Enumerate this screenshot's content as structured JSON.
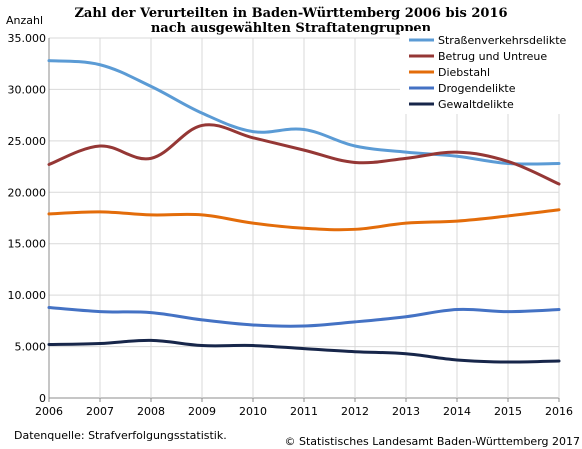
{
  "chart_data": {
    "type": "line",
    "title": "Zahl der Verurteilten in Baden-Württemberg 2006 bis 2016",
    "subtitle": "nach ausgewählten Straftatengruppen",
    "xlabel": "",
    "ylabel": "Anzahl",
    "x": [
      2006,
      2007,
      2008,
      2009,
      2010,
      2011,
      2012,
      2013,
      2014,
      2015,
      2016
    ],
    "ylim": [
      0,
      35000
    ],
    "yticks": [
      0,
      5000,
      10000,
      15000,
      20000,
      25000,
      30000,
      35000
    ],
    "ytick_labels": [
      "0",
      "5.000",
      "10.000",
      "15.000",
      "20.000",
      "25.000",
      "30.000",
      "35.000"
    ],
    "grid": true,
    "legend_position": "top-right",
    "series": [
      {
        "name": "Straßenverkehrsdelikte",
        "color": "#5b9bd5",
        "values": [
          32800,
          32400,
          30300,
          27700,
          25900,
          26100,
          24500,
          23900,
          23500,
          22800,
          22800
        ]
      },
      {
        "name": "Betrug und Untreue",
        "color": "#953735",
        "values": [
          22700,
          24500,
          23300,
          26500,
          25300,
          24100,
          22900,
          23300,
          23900,
          23000,
          20800
        ]
      },
      {
        "name": "Diebstahl",
        "color": "#e36c0a",
        "values": [
          17900,
          18100,
          17800,
          17800,
          17000,
          16500,
          16400,
          17000,
          17200,
          17700,
          18300
        ]
      },
      {
        "name": "Drogendelikte",
        "color": "#4472c4",
        "values": [
          8800,
          8400,
          8300,
          7600,
          7100,
          7000,
          7400,
          7900,
          8600,
          8400,
          8600
        ]
      },
      {
        "name": "Gewaltdelikte",
        "color": "#17264a",
        "values": [
          5200,
          5300,
          5600,
          5100,
          5100,
          4800,
          4500,
          4300,
          3700,
          3500,
          3600
        ]
      }
    ]
  },
  "footer": {
    "source": "Datenquelle: Strafverfolgungsstatistik.",
    "copyright": "© Statistisches Landesamt Baden-Württemberg 2017"
  }
}
